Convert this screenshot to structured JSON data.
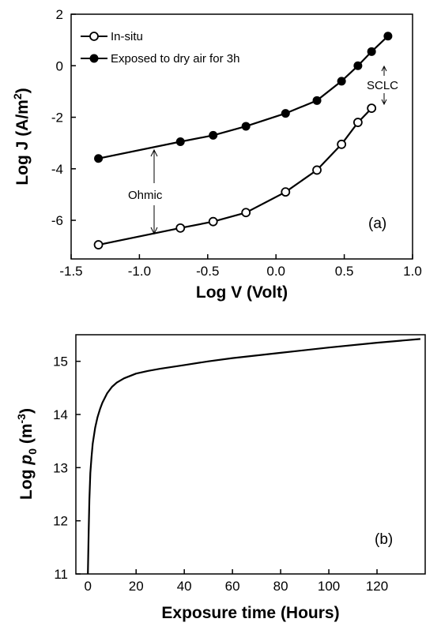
{
  "chart_data": [
    {
      "type": "line",
      "panel_label": "(a)",
      "xlabel": "Log V (Volt)",
      "ylabel": "Log J (A/m²)",
      "ylabel_main": "Log J (A/m",
      "ylabel_sup": "2",
      "ylabel_end": ")",
      "xlim": [
        -1.5,
        1.0
      ],
      "ylim": [
        -7.5,
        2
      ],
      "xticks": [
        -1.5,
        -1.0,
        -0.5,
        0.0,
        0.5,
        1.0
      ],
      "xtick_labels": [
        "-1.5",
        "-1.0",
        "-0.5",
        "0.0",
        "0.5",
        "1.0"
      ],
      "yticks": [
        -6,
        -4,
        -2,
        0,
        2
      ],
      "ytick_labels": [
        "-6",
        "-4",
        "-2",
        "0",
        "2"
      ],
      "grid": false,
      "legend_position": "top-left",
      "series": [
        {
          "name": "In-situ",
          "marker": "open-circle",
          "x": [
            -1.3,
            -0.7,
            -0.46,
            -0.22,
            0.07,
            0.3,
            0.48,
            0.6,
            0.7
          ],
          "y": [
            -6.95,
            -6.3,
            -6.05,
            -5.7,
            -4.9,
            -4.05,
            -3.05,
            -2.2,
            -1.65
          ]
        },
        {
          "name": "Exposed to dry air for 3h",
          "marker": "filled-circle",
          "x": [
            -1.3,
            -0.7,
            -0.46,
            -0.22,
            0.07,
            0.3,
            0.48,
            0.6,
            0.7,
            0.82
          ],
          "y": [
            -3.6,
            -2.95,
            -2.7,
            -2.35,
            -1.85,
            -1.35,
            -0.6,
            0.0,
            0.55,
            1.15
          ]
        }
      ],
      "annotations": [
        {
          "text": "Ohmic"
        },
        {
          "text": "SCLC"
        }
      ]
    },
    {
      "type": "line",
      "panel_label": "(b)",
      "xlabel": "Exposure time (Hours)",
      "ylabel_main": "Log ",
      "ylabel_italic": "p",
      "ylabel_sub": "0",
      "ylabel_rest": " (m",
      "ylabel_sup": "-3",
      "ylabel_end": ")",
      "xlim": [
        -5,
        140
      ],
      "ylim": [
        11,
        15.5
      ],
      "xticks": [
        0,
        20,
        40,
        60,
        80,
        100,
        120
      ],
      "xtick_labels": [
        "0",
        "20",
        "40",
        "60",
        "80",
        "100",
        "120"
      ],
      "yticks": [
        11,
        12,
        13,
        14,
        15
      ],
      "ytick_labels": [
        "11",
        "12",
        "13",
        "14",
        "15"
      ],
      "grid": false,
      "series": [
        {
          "name": "",
          "x": [
            0,
            0.3,
            0.6,
            1,
            1.5,
            2,
            3,
            4,
            5,
            6,
            8,
            10,
            12,
            15,
            20,
            25,
            30,
            40,
            50,
            60,
            80,
            100,
            120,
            138
          ],
          "y": [
            11.0,
            11.8,
            12.4,
            12.9,
            13.2,
            13.45,
            13.75,
            13.95,
            14.1,
            14.22,
            14.4,
            14.52,
            14.6,
            14.68,
            14.77,
            14.82,
            14.86,
            14.93,
            15.0,
            15.06,
            15.16,
            15.26,
            15.35,
            15.42
          ]
        }
      ]
    }
  ]
}
